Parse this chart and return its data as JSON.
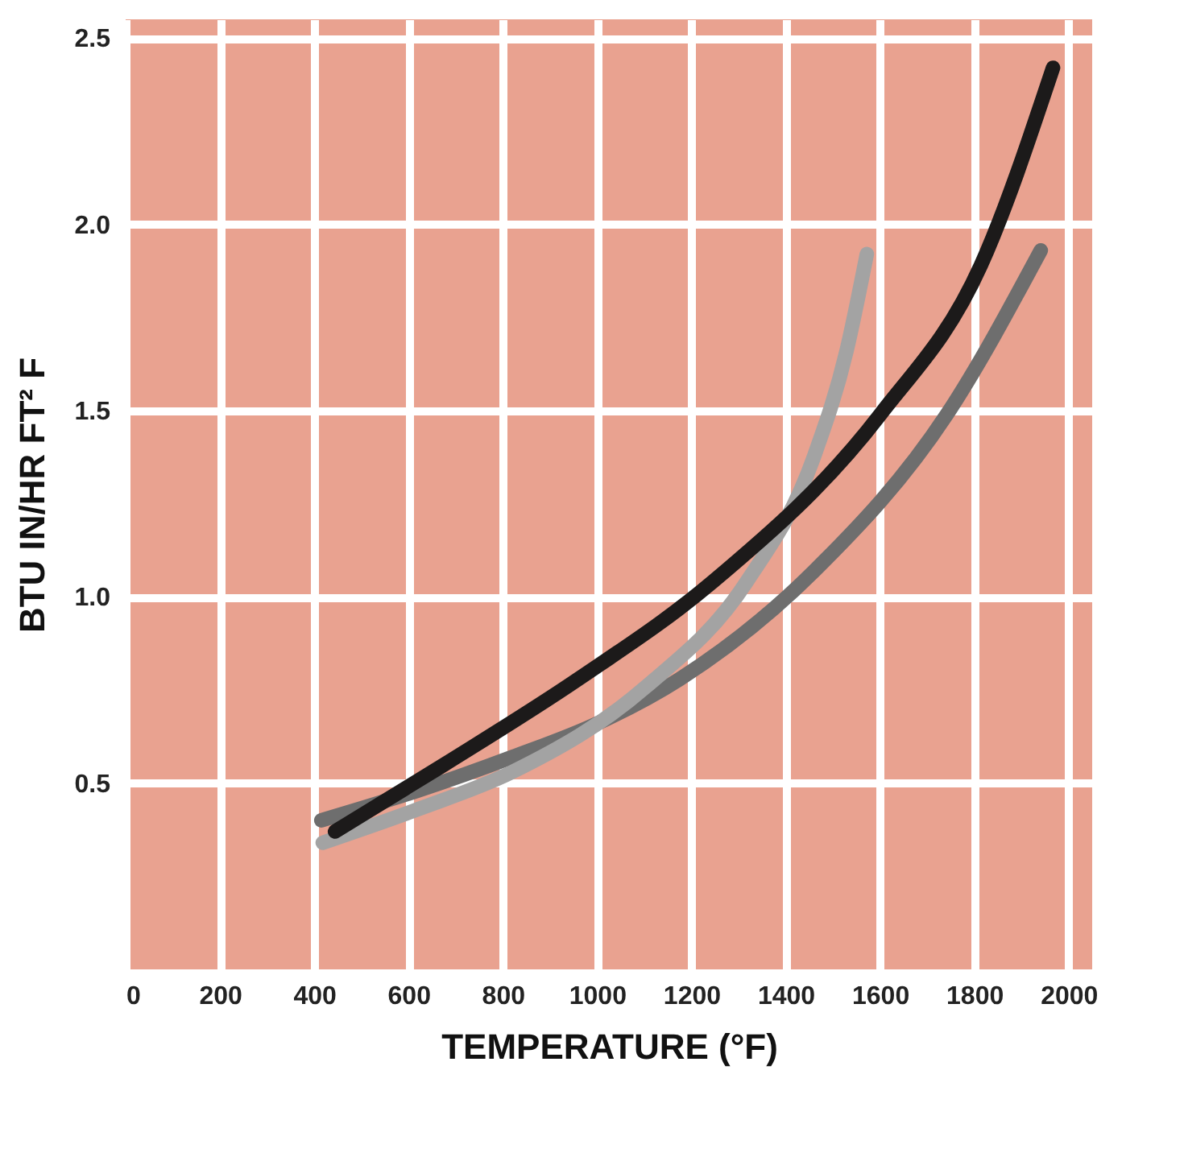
{
  "chart_data": {
    "type": "line",
    "xlabel": "TEMPERATURE (°F)",
    "ylabel": "BTU IN/HR FT² F",
    "xlim": [
      0,
      2050
    ],
    "xticks": [
      0,
      200,
      400,
      600,
      800,
      1000,
      1200,
      1400,
      1600,
      1800,
      2000
    ],
    "ylim": [
      0,
      2.55
    ],
    "yticks": [
      0.5,
      {
        "value": 1,
        "label": "1.0"
      },
      1.5,
      {
        "value": 2,
        "label": "2.0"
      },
      2.5
    ],
    "grid": true,
    "line_style": "solid",
    "series": [
      {
        "color": "#6e6e6e",
        "x": [
          415,
          620,
          820,
          1000,
          1176,
          1461,
          1742,
          1941
        ],
        "values": [
          0.4,
          0.48,
          0.57,
          0.66,
          0.78,
          1.07,
          1.49,
          1.93
        ]
      },
      {
        "color": "#a3a3a3",
        "x": [
          418,
          620,
          820,
          1105,
          1317,
          1461,
          1529,
          1572
        ],
        "values": [
          0.34,
          0.43,
          0.53,
          0.76,
          1.04,
          1.38,
          1.66,
          1.92
        ]
      },
      {
        "color": "#1c1a1a",
        "x": [
          444,
          676,
          961,
          1245,
          1601,
          1814,
          1967
        ],
        "values": [
          0.37,
          0.55,
          0.78,
          1.04,
          1.49,
          1.89,
          2.42
        ]
      }
    ]
  }
}
